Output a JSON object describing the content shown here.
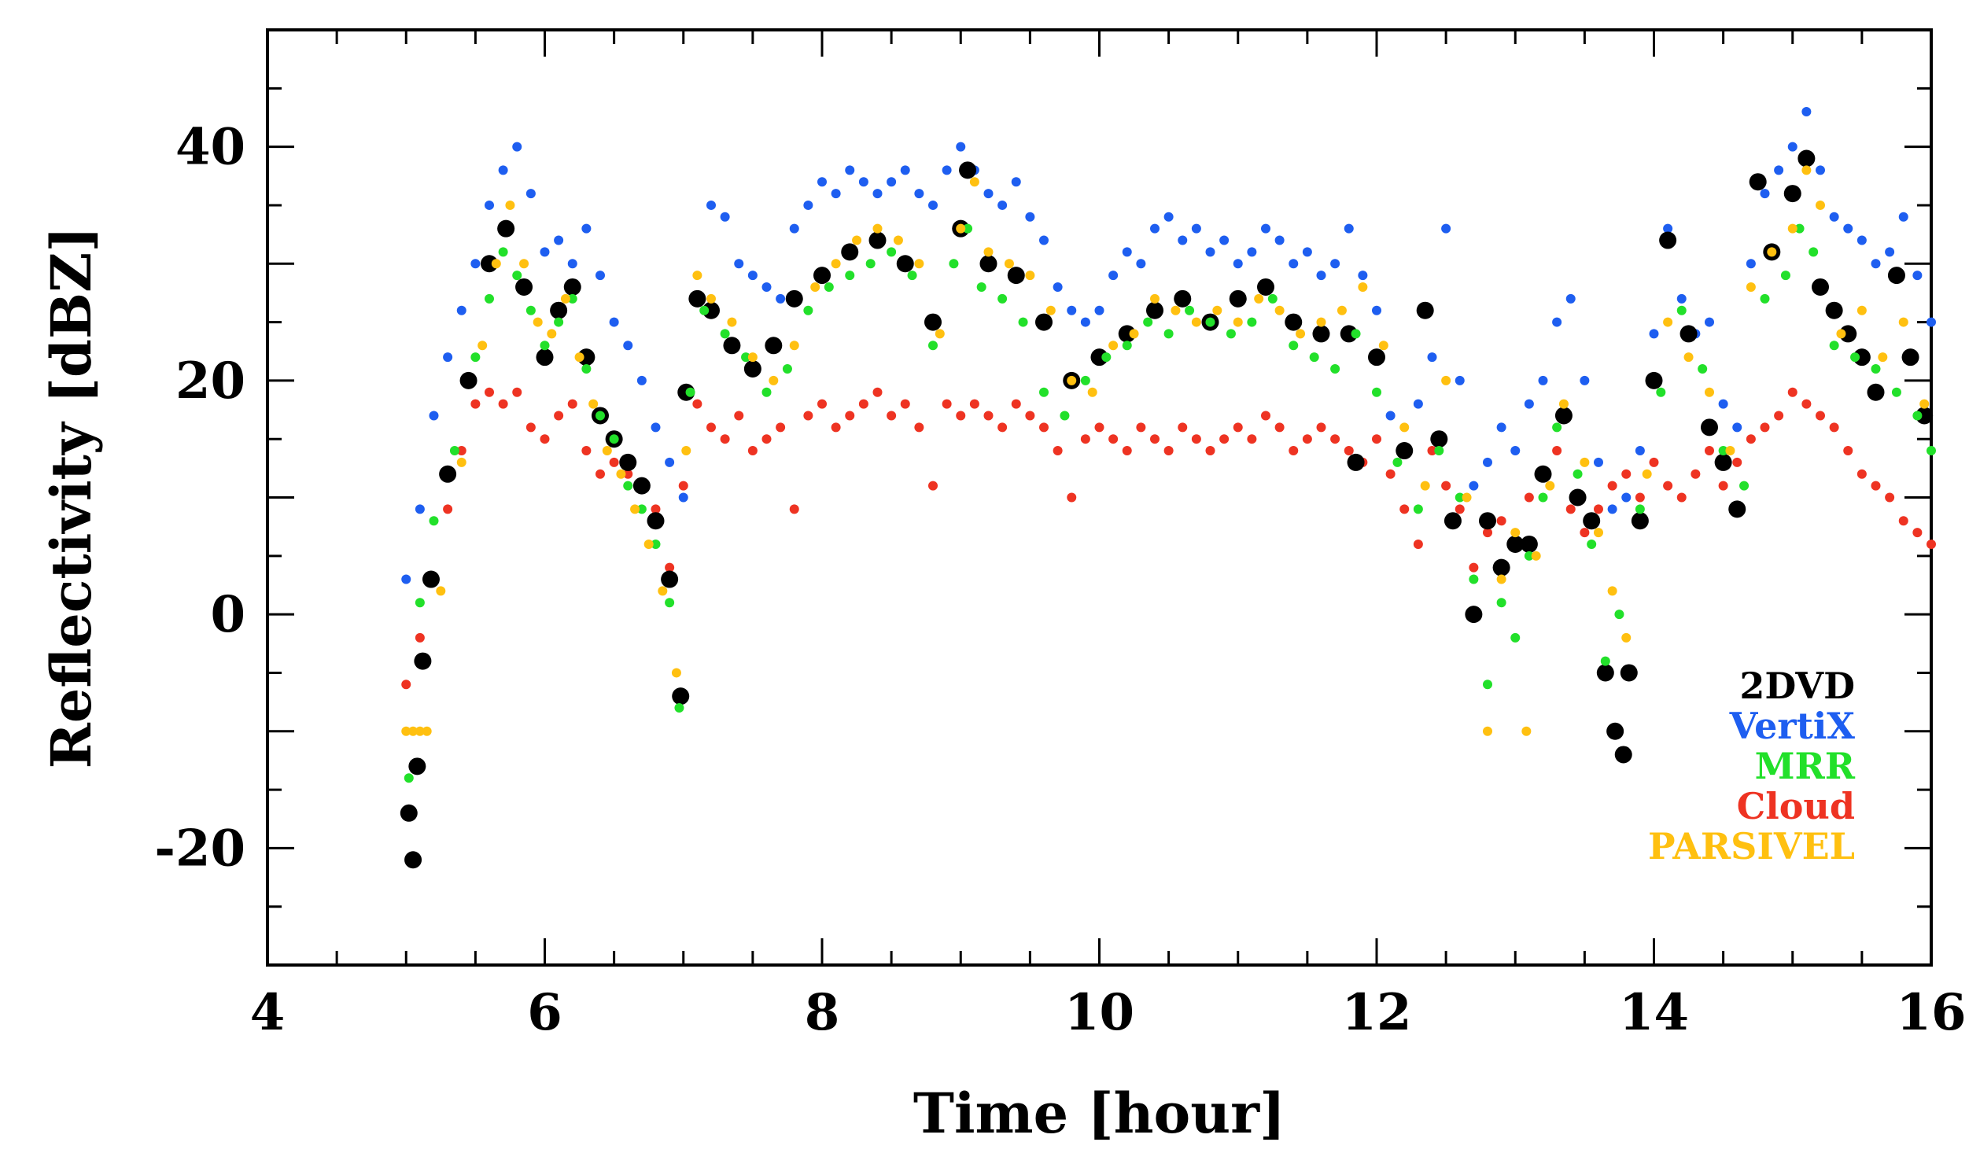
{
  "chart_data": {
    "type": "scatter",
    "title": "",
    "xlabel": "Time [hour]",
    "ylabel": "Reflectivity [dBZ]",
    "xlim": [
      4,
      16
    ],
    "ylim": [
      -30,
      50
    ],
    "x_ticks": [
      4,
      6,
      8,
      10,
      12,
      14,
      16
    ],
    "x_tick_labels": [
      "4",
      "6",
      "8",
      "10",
      "12",
      "14",
      "16"
    ],
    "y_ticks": [
      -20,
      0,
      20,
      40
    ],
    "y_tick_labels": [
      "-20",
      "0",
      "20",
      "40"
    ],
    "legend_position": "bottom-right",
    "series": [
      {
        "name": "2DVD",
        "color": "#000000",
        "marker": "large-dot",
        "x": [
          5.02,
          5.05,
          5.08,
          5.12,
          5.18,
          5.3,
          5.45,
          5.6,
          5.72,
          5.85,
          6.0,
          6.1,
          6.2,
          6.3,
          6.4,
          6.5,
          6.6,
          6.7,
          6.8,
          6.9,
          6.98,
          7.02,
          7.1,
          7.2,
          7.35,
          7.5,
          7.65,
          7.8,
          8.0,
          8.2,
          8.4,
          8.6,
          8.8,
          9.0,
          9.05,
          9.2,
          9.4,
          9.6,
          9.8,
          10.0,
          10.2,
          10.4,
          10.6,
          10.8,
          11.0,
          11.2,
          11.4,
          11.6,
          11.8,
          11.85,
          12.0,
          12.2,
          12.35,
          12.45,
          12.55,
          12.7,
          12.8,
          12.9,
          13.0,
          13.1,
          13.2,
          13.35,
          13.45,
          13.55,
          13.65,
          13.72,
          13.78,
          13.82,
          13.9,
          14.0,
          14.1,
          14.25,
          14.4,
          14.5,
          14.6,
          14.75,
          14.85,
          15.0,
          15.1,
          15.2,
          15.3,
          15.4,
          15.5,
          15.6,
          15.75,
          15.85,
          15.95
        ],
        "y": [
          -17,
          -21,
          -13,
          -4,
          3,
          12,
          20,
          30,
          33,
          28,
          22,
          26,
          28,
          22,
          17,
          15,
          13,
          11,
          8,
          3,
          -7,
          19,
          27,
          26,
          23,
          21,
          23,
          27,
          29,
          31,
          32,
          30,
          25,
          33,
          38,
          30,
          29,
          25,
          20,
          22,
          24,
          26,
          27,
          25,
          27,
          28,
          25,
          24,
          24,
          13,
          22,
          14,
          26,
          15,
          8,
          0,
          8,
          4,
          6,
          6,
          12,
          17,
          10,
          8,
          -5,
          -10,
          -12,
          -5,
          8,
          20,
          32,
          24,
          16,
          13,
          9,
          37,
          31,
          36,
          39,
          28,
          26,
          24,
          22,
          19,
          29,
          22,
          17
        ]
      },
      {
        "name": "VertiX",
        "color": "#1e5ef0",
        "marker": "dot",
        "x": [
          5.0,
          5.1,
          5.2,
          5.3,
          5.4,
          5.5,
          5.6,
          5.7,
          5.8,
          5.9,
          6.0,
          6.1,
          6.2,
          6.3,
          6.4,
          6.5,
          6.6,
          6.7,
          6.8,
          6.9,
          7.0,
          7.1,
          7.2,
          7.3,
          7.4,
          7.5,
          7.6,
          7.7,
          7.8,
          7.9,
          8.0,
          8.1,
          8.2,
          8.3,
          8.4,
          8.5,
          8.6,
          8.7,
          8.8,
          8.9,
          9.0,
          9.1,
          9.2,
          9.3,
          9.4,
          9.5,
          9.6,
          9.7,
          9.8,
          9.9,
          10.0,
          10.1,
          10.2,
          10.3,
          10.4,
          10.5,
          10.6,
          10.7,
          10.8,
          10.9,
          11.0,
          11.1,
          11.2,
          11.3,
          11.4,
          11.5,
          11.6,
          11.7,
          11.8,
          11.9,
          12.0,
          12.1,
          12.2,
          12.3,
          12.4,
          12.5,
          12.6,
          12.7,
          12.8,
          12.9,
          13.0,
          13.1,
          13.2,
          13.3,
          13.4,
          13.5,
          13.6,
          13.7,
          13.8,
          13.9,
          14.0,
          14.1,
          14.2,
          14.3,
          14.4,
          14.5,
          14.6,
          14.7,
          14.8,
          14.9,
          15.0,
          15.1,
          15.2,
          15.3,
          15.4,
          15.5,
          15.6,
          15.7,
          15.8,
          15.9,
          16.0
        ],
        "y": [
          3,
          9,
          17,
          22,
          26,
          30,
          35,
          38,
          40,
          36,
          31,
          32,
          30,
          33,
          29,
          25,
          23,
          20,
          16,
          13,
          10,
          27,
          35,
          34,
          30,
          29,
          28,
          27,
          33,
          35,
          37,
          36,
          38,
          37,
          36,
          37,
          38,
          36,
          35,
          38,
          40,
          38,
          36,
          35,
          37,
          34,
          32,
          28,
          26,
          25,
          26,
          29,
          31,
          30,
          33,
          34,
          32,
          33,
          31,
          32,
          30,
          31,
          33,
          32,
          30,
          31,
          29,
          30,
          33,
          29,
          26,
          17,
          14,
          18,
          22,
          33,
          20,
          11,
          13,
          16,
          14,
          18,
          20,
          25,
          27,
          20,
          13,
          9,
          10,
          14,
          24,
          33,
          27,
          24,
          25,
          18,
          16,
          30,
          36,
          38,
          40,
          43,
          38,
          34,
          33,
          32,
          30,
          31,
          34,
          29,
          25
        ]
      },
      {
        "name": "MRR",
        "color": "#22e02a",
        "marker": "dot",
        "x": [
          5.02,
          5.1,
          5.2,
          5.35,
          5.5,
          5.6,
          5.7,
          5.8,
          5.9,
          6.0,
          6.1,
          6.2,
          6.3,
          6.4,
          6.5,
          6.6,
          6.7,
          6.8,
          6.9,
          6.97,
          7.05,
          7.15,
          7.3,
          7.45,
          7.6,
          7.75,
          7.9,
          8.05,
          8.2,
          8.35,
          8.5,
          8.65,
          8.8,
          8.95,
          9.05,
          9.15,
          9.3,
          9.45,
          9.6,
          9.75,
          9.9,
          10.05,
          10.2,
          10.35,
          10.5,
          10.65,
          10.8,
          10.95,
          11.1,
          11.25,
          11.4,
          11.55,
          11.7,
          11.85,
          12.0,
          12.15,
          12.3,
          12.45,
          12.6,
          12.7,
          12.8,
          12.9,
          13.0,
          13.1,
          13.2,
          13.3,
          13.45,
          13.55,
          13.65,
          13.75,
          13.9,
          14.05,
          14.2,
          14.35,
          14.5,
          14.65,
          14.8,
          14.95,
          15.05,
          15.15,
          15.3,
          15.45,
          15.6,
          15.75,
          15.9,
          16.0
        ],
        "y": [
          -14,
          1,
          8,
          14,
          22,
          27,
          31,
          29,
          26,
          23,
          25,
          27,
          21,
          17,
          15,
          11,
          9,
          6,
          1,
          -8,
          19,
          26,
          24,
          22,
          19,
          21,
          26,
          28,
          29,
          30,
          31,
          29,
          23,
          30,
          33,
          28,
          27,
          25,
          19,
          17,
          20,
          22,
          23,
          25,
          24,
          26,
          25,
          24,
          25,
          27,
          23,
          22,
          21,
          24,
          19,
          13,
          9,
          14,
          10,
          3,
          -6,
          1,
          -2,
          5,
          10,
          16,
          12,
          6,
          -4,
          0,
          9,
          19,
          26,
          21,
          14,
          11,
          27,
          29,
          33,
          31,
          23,
          22,
          21,
          19,
          17,
          14
        ]
      },
      {
        "name": "Cloud",
        "color": "#ee3322",
        "marker": "dot",
        "x": [
          5.0,
          5.1,
          5.2,
          5.3,
          5.4,
          5.5,
          5.6,
          5.7,
          5.8,
          5.9,
          6.0,
          6.1,
          6.2,
          6.3,
          6.4,
          6.5,
          6.6,
          6.7,
          6.8,
          6.9,
          7.0,
          7.1,
          7.2,
          7.3,
          7.4,
          7.5,
          7.6,
          7.7,
          7.8,
          7.9,
          8.0,
          8.1,
          8.2,
          8.3,
          8.4,
          8.5,
          8.6,
          8.7,
          8.8,
          8.9,
          9.0,
          9.1,
          9.2,
          9.3,
          9.4,
          9.5,
          9.6,
          9.7,
          9.8,
          9.9,
          10.0,
          10.1,
          10.2,
          10.3,
          10.4,
          10.5,
          10.6,
          10.7,
          10.8,
          10.9,
          11.0,
          11.1,
          11.2,
          11.3,
          11.4,
          11.5,
          11.6,
          11.7,
          11.8,
          11.9,
          12.0,
          12.1,
          12.2,
          12.3,
          12.4,
          12.5,
          12.6,
          12.7,
          12.8,
          12.9,
          13.0,
          13.1,
          13.2,
          13.3,
          13.4,
          13.5,
          13.6,
          13.7,
          13.8,
          13.9,
          14.0,
          14.1,
          14.2,
          14.3,
          14.4,
          14.5,
          14.6,
          14.7,
          14.8,
          14.9,
          15.0,
          15.1,
          15.2,
          15.3,
          15.4,
          15.5,
          15.6,
          15.7,
          15.8,
          15.9,
          16.0
        ],
        "y": [
          -6,
          -2,
          3,
          9,
          14,
          18,
          19,
          18,
          19,
          16,
          15,
          17,
          18,
          14,
          12,
          13,
          12,
          11,
          9,
          4,
          11,
          18,
          16,
          15,
          17,
          14,
          15,
          16,
          9,
          17,
          18,
          16,
          17,
          18,
          19,
          17,
          18,
          16,
          11,
          18,
          17,
          18,
          17,
          16,
          18,
          17,
          16,
          14,
          10,
          15,
          16,
          15,
          14,
          16,
          15,
          14,
          16,
          15,
          14,
          15,
          16,
          15,
          17,
          16,
          14,
          15,
          16,
          15,
          14,
          13,
          15,
          12,
          9,
          6,
          14,
          11,
          9,
          4,
          7,
          8,
          6,
          10,
          12,
          14,
          9,
          7,
          9,
          11,
          12,
          10,
          13,
          11,
          10,
          12,
          14,
          11,
          13,
          15,
          16,
          17,
          19,
          18,
          17,
          16,
          14,
          12,
          11,
          10,
          8,
          7,
          6
        ]
      },
      {
        "name": "PARSIVEL",
        "color": "#ffc010",
        "marker": "dot",
        "x": [
          5.0,
          5.05,
          5.1,
          5.15,
          5.25,
          5.4,
          5.55,
          5.65,
          5.75,
          5.85,
          5.95,
          6.05,
          6.15,
          6.25,
          6.35,
          6.45,
          6.55,
          6.65,
          6.75,
          6.85,
          6.95,
          7.02,
          7.1,
          7.2,
          7.35,
          7.5,
          7.65,
          7.8,
          7.95,
          8.1,
          8.25,
          8.4,
          8.55,
          8.7,
          8.85,
          9.0,
          9.1,
          9.2,
          9.35,
          9.5,
          9.65,
          9.8,
          9.95,
          10.1,
          10.25,
          10.4,
          10.55,
          10.7,
          10.85,
          11.0,
          11.15,
          11.3,
          11.45,
          11.6,
          11.75,
          11.9,
          12.05,
          12.2,
          12.35,
          12.5,
          12.65,
          12.8,
          12.9,
          13.0,
          13.08,
          13.15,
          13.25,
          13.35,
          13.5,
          13.6,
          13.7,
          13.8,
          13.95,
          14.1,
          14.25,
          14.4,
          14.55,
          14.7,
          14.85,
          15.0,
          15.1,
          15.2,
          15.35,
          15.5,
          15.65,
          15.8,
          15.95
        ],
        "y": [
          -10,
          -10,
          -10,
          -10,
          2,
          13,
          23,
          30,
          35,
          30,
          25,
          24,
          27,
          22,
          18,
          14,
          12,
          9,
          6,
          2,
          -5,
          14,
          29,
          27,
          25,
          22,
          20,
          23,
          28,
          30,
          32,
          33,
          32,
          30,
          24,
          33,
          37,
          31,
          30,
          29,
          26,
          20,
          19,
          23,
          24,
          27,
          26,
          25,
          26,
          25,
          27,
          26,
          24,
          25,
          26,
          28,
          23,
          16,
          11,
          20,
          10,
          -10,
          3,
          7,
          -10,
          5,
          11,
          18,
          13,
          7,
          2,
          -2,
          12,
          25,
          22,
          19,
          14,
          28,
          31,
          33,
          38,
          35,
          24,
          26,
          22,
          25,
          18
        ]
      }
    ]
  }
}
